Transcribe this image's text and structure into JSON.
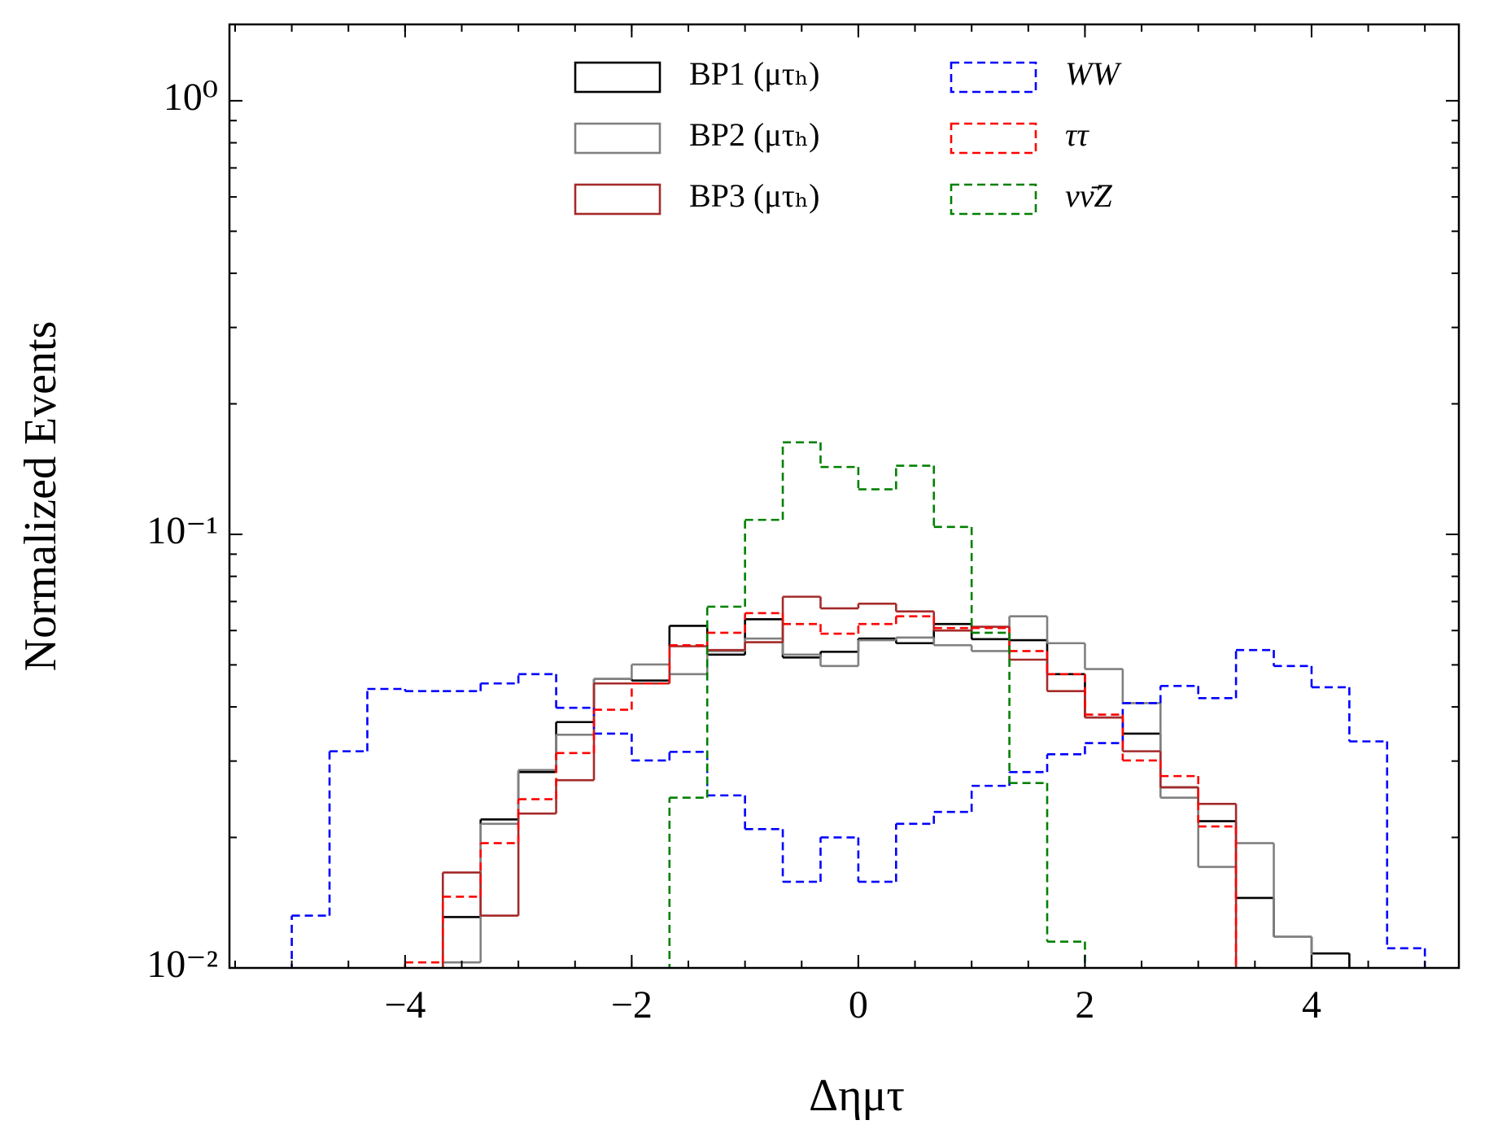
{
  "chart_data": {
    "type": "histogram",
    "xlabel": "Δημτ",
    "ylabel": "Normalized Events",
    "xlim": [
      -5.55,
      5.3
    ],
    "ylim": [
      0.01,
      1.5
    ],
    "yscale": "log",
    "xticks": [
      {
        "value": -4,
        "label": "−4"
      },
      {
        "value": -2,
        "label": "−2"
      },
      0,
      2,
      4
    ],
    "yticks": [
      {
        "value": 1,
        "label": "10⁰"
      },
      {
        "value": 0.1,
        "label": "10⁻¹"
      },
      {
        "value": 0.01,
        "label": "10⁻²"
      }
    ],
    "legend": "upper center",
    "bins": [
      -5,
      -4.6667,
      -4.3333,
      -4,
      -3.6667,
      -3.3333,
      -3,
      -2.6667,
      -2.3333,
      -2,
      -1.6667,
      -1.3333,
      -1,
      -0.6667,
      -0.3333,
      0,
      0.3333,
      0.6667,
      1,
      1.3333,
      1.6667,
      2,
      2.3333,
      2.6667,
      3,
      3.3333,
      3.6667,
      4,
      4.3333,
      4.6667,
      5
    ],
    "series": [
      {
        "name": "BP1 (μτₕ)",
        "color": "#000000",
        "style": "solid",
        "values": [
          null,
          null,
          null,
          null,
          0.0131,
          0.022,
          0.0283,
          0.0369,
          0.0464,
          0.046,
          0.0615,
          0.0528,
          0.0637,
          0.052,
          0.0536,
          0.0575,
          0.0561,
          0.0621,
          0.0573,
          0.057,
          0.0476,
          0.0378,
          0.0347,
          0.0261,
          0.0218,
          0.0145,
          0.0118,
          0.0108,
          null,
          null
        ]
      },
      {
        "name": "BP2 (μτₕ)",
        "color": "#808080",
        "style": "solid",
        "values": [
          null,
          null,
          null,
          null,
          0.0103,
          0.0215,
          0.0286,
          0.0345,
          0.0464,
          0.0501,
          0.0476,
          0.0538,
          0.0575,
          0.0528,
          0.0497,
          0.057,
          0.0578,
          0.0555,
          0.0538,
          0.0647,
          0.0561,
          0.0489,
          0.0408,
          0.0247,
          0.0171,
          0.0194,
          0.0118,
          null,
          null,
          null
        ]
      },
      {
        "name": "BP3 (μτₕ)",
        "color": "#a52a2a",
        "style": "solid",
        "values": [
          null,
          null,
          null,
          null,
          0.0166,
          0.0132,
          0.0227,
          0.0271,
          0.0453,
          0.0453,
          0.0552,
          0.0541,
          0.0564,
          0.0718,
          0.0675,
          0.0692,
          0.0664,
          0.06,
          0.0612,
          0.0514,
          0.0435,
          0.0378,
          0.0316,
          0.0261,
          0.0239,
          null,
          null,
          null,
          null,
          null
        ]
      },
      {
        "name": "WW",
        "color": "#0000ff",
        "style": "dashed",
        "values": [
          0.0132,
          0.0316,
          0.044,
          0.0435,
          0.0435,
          0.0453,
          0.0476,
          0.0398,
          0.0347,
          0.0301,
          0.0315,
          0.025,
          0.0209,
          0.0158,
          0.02,
          0.0158,
          0.0215,
          0.0229,
          0.0263,
          0.0283,
          0.0311,
          0.033,
          0.0408,
          0.0447,
          0.0419,
          0.0541,
          0.0497,
          0.0444,
          0.0333,
          0.0111
        ]
      },
      {
        "name": "ττ",
        "color": "#ff0000",
        "style": "dashed",
        "values": [
          null,
          null,
          null,
          0.0103,
          0.0146,
          0.0194,
          0.0245,
          0.0313,
          0.0394,
          0.0453,
          0.0555,
          0.0593,
          0.0658,
          0.0621,
          0.059,
          0.0621,
          0.0647,
          0.0608,
          0.0608,
          0.0538,
          0.0476,
          0.0384,
          0.0301,
          0.0277,
          0.0212,
          null,
          null,
          null,
          null,
          null
        ]
      },
      {
        "name": "νν̄Z",
        "color": "#008000",
        "style": "dashed",
        "values": [
          null,
          null,
          null,
          null,
          null,
          null,
          null,
          null,
          null,
          null,
          0.0247,
          0.0681,
          0.108,
          0.163,
          0.143,
          0.127,
          0.144,
          0.104,
          0.0593,
          0.0267,
          0.0115,
          null,
          null,
          null,
          null,
          null,
          null,
          null,
          null,
          null
        ]
      }
    ]
  }
}
